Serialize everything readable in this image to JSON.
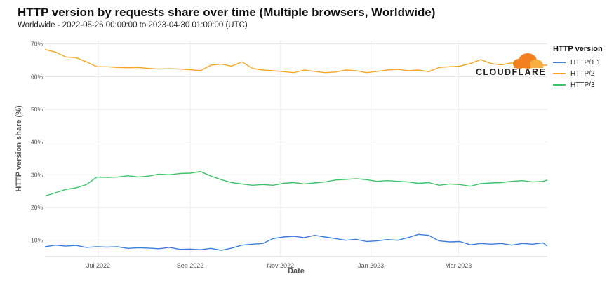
{
  "header": {
    "title": "HTTP version by requests share over time (Multiple browsers, Worldwide)",
    "subtitle": "Worldwide - 2022-05-26 00:00:00 to 2023-04-30 01:00:00 (UTC)"
  },
  "logo": {
    "text": "CLOUDFLARE",
    "colors": [
      "#f38020",
      "#faae40"
    ]
  },
  "chart_data": {
    "type": "line",
    "title": "HTTP version by requests share over time (Multiple browsers, Worldwide)",
    "xlabel": "Date",
    "ylabel": "HTTP version share (%)",
    "ylim": [
      5,
      71
    ],
    "yticks": [
      10,
      20,
      30,
      40,
      50,
      60,
      70
    ],
    "ytick_labels": [
      "10%",
      "20%",
      "30%",
      "40%",
      "50%",
      "60%",
      "70%"
    ],
    "xlim": [
      "2022-05-26",
      "2023-04-30"
    ],
    "xticks": [
      "2022-07-01",
      "2022-09-01",
      "2022-11-01",
      "2023-01-01",
      "2023-03-01"
    ],
    "xtick_labels": [
      "Jul 2022",
      "Sep 2022",
      "Nov 2022",
      "Jan 2023",
      "Mar 2023"
    ],
    "grid": true,
    "legend": {
      "title": "HTTP version",
      "placement": "top-right"
    },
    "x": [
      "2022-05-26",
      "2022-06-02",
      "2022-06-09",
      "2022-06-16",
      "2022-06-23",
      "2022-06-30",
      "2022-07-07",
      "2022-07-14",
      "2022-07-21",
      "2022-07-28",
      "2022-08-04",
      "2022-08-11",
      "2022-08-18",
      "2022-08-25",
      "2022-09-01",
      "2022-09-08",
      "2022-09-15",
      "2022-09-22",
      "2022-09-29",
      "2022-10-06",
      "2022-10-13",
      "2022-10-20",
      "2022-10-27",
      "2022-11-03",
      "2022-11-10",
      "2022-11-17",
      "2022-11-24",
      "2022-12-01",
      "2022-12-08",
      "2022-12-15",
      "2022-12-22",
      "2022-12-29",
      "2023-01-05",
      "2023-01-12",
      "2023-01-19",
      "2023-01-26",
      "2023-02-02",
      "2023-02-09",
      "2023-02-16",
      "2023-02-23",
      "2023-03-02",
      "2023-03-09",
      "2023-03-16",
      "2023-03-23",
      "2023-03-30",
      "2023-04-06",
      "2023-04-13",
      "2023-04-20",
      "2023-04-27",
      "2023-04-30"
    ],
    "series": [
      {
        "name": "HTTP/1.1",
        "color": "#3b7ddd",
        "values": [
          8.0,
          8.5,
          8.2,
          8.4,
          7.8,
          8.0,
          7.9,
          8.0,
          7.5,
          7.7,
          7.6,
          7.4,
          7.8,
          7.2,
          7.3,
          7.1,
          7.5,
          6.9,
          7.6,
          8.5,
          8.8,
          9.0,
          10.5,
          11.0,
          11.2,
          10.8,
          11.5,
          11.0,
          10.5,
          10.0,
          10.3,
          9.6,
          9.8,
          10.2,
          10.0,
          10.8,
          11.8,
          11.5,
          9.8,
          9.5,
          9.6,
          8.6,
          9.0,
          8.8,
          9.0,
          8.5,
          9.0,
          8.8,
          9.2,
          8.2
        ]
      },
      {
        "name": "HTTP/2",
        "color": "#f5a623",
        "values": [
          68.3,
          67.5,
          66.0,
          65.8,
          64.5,
          63.0,
          63.0,
          62.8,
          62.7,
          62.8,
          62.5,
          62.3,
          62.4,
          62.3,
          62.1,
          61.8,
          63.5,
          63.8,
          63.2,
          64.5,
          62.5,
          62.0,
          61.8,
          61.5,
          61.2,
          62.0,
          61.6,
          61.2,
          61.4,
          62.0,
          61.8,
          61.2,
          61.6,
          62.0,
          62.2,
          61.8,
          62.0,
          61.5,
          62.8,
          63.0,
          63.2,
          64.0,
          65.2,
          64.0,
          63.6,
          64.2,
          63.0,
          63.4,
          63.5,
          63.5
        ]
      },
      {
        "name": "HTTP/3",
        "color": "#3cc46a",
        "values": [
          23.5,
          24.5,
          25.5,
          26.0,
          27.0,
          29.3,
          29.2,
          29.3,
          29.7,
          29.3,
          29.6,
          30.2,
          30.0,
          30.4,
          30.5,
          31.0,
          29.6,
          28.5,
          27.6,
          27.2,
          26.8,
          27.0,
          26.8,
          27.4,
          27.6,
          27.2,
          27.5,
          27.8,
          28.4,
          28.6,
          28.8,
          28.5,
          28.0,
          28.2,
          28.0,
          27.8,
          27.4,
          27.6,
          26.8,
          27.2,
          27.0,
          26.5,
          27.3,
          27.5,
          27.6,
          28.0,
          28.2,
          27.8,
          28.0,
          28.4
        ]
      }
    ]
  }
}
